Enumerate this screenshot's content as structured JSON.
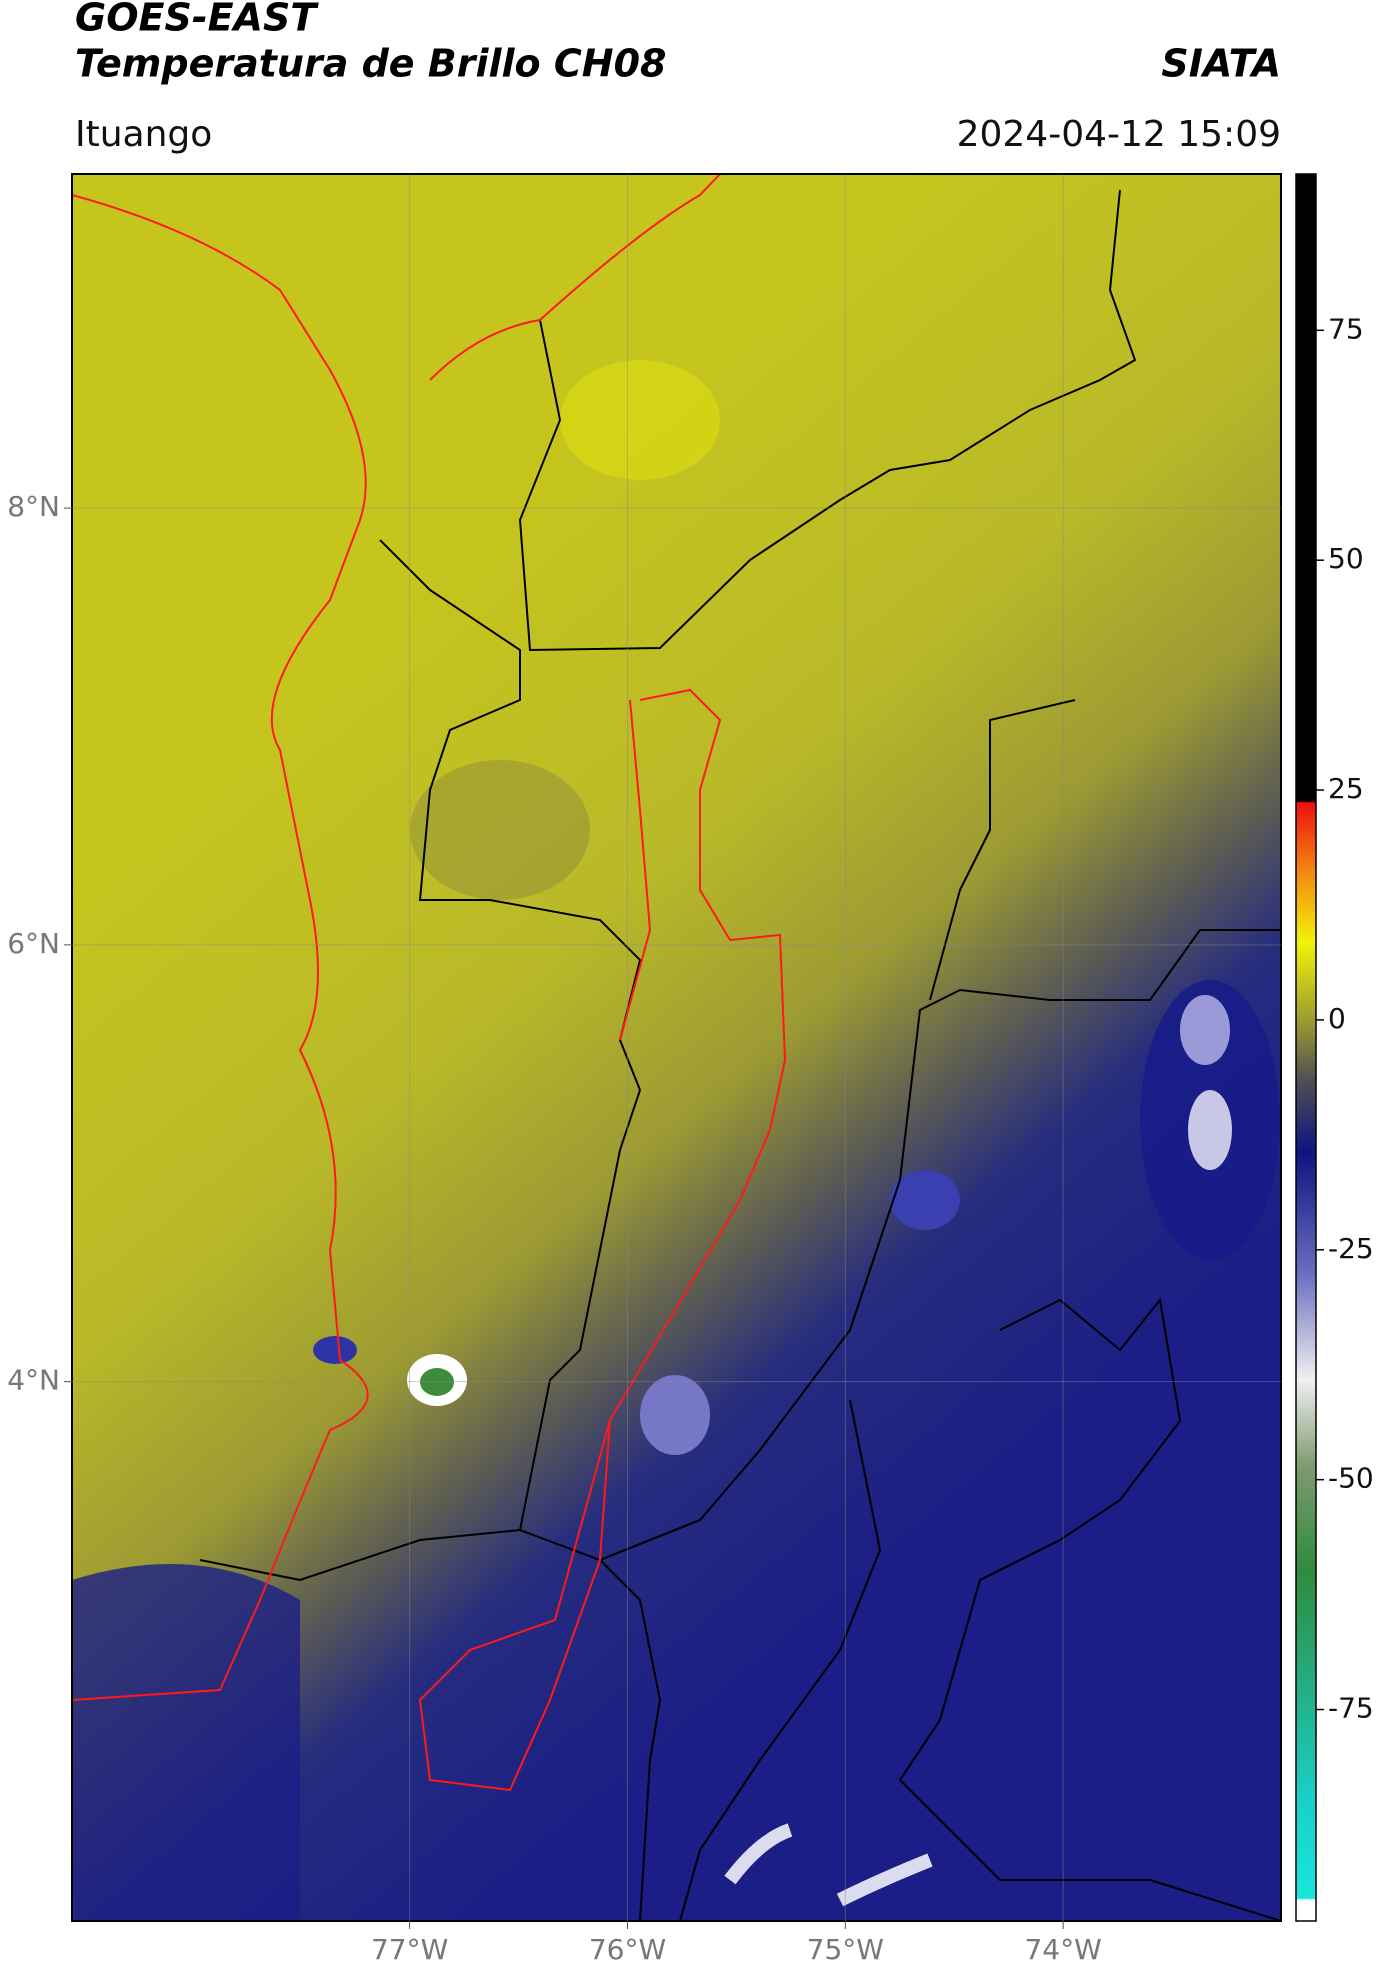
{
  "header": {
    "title": "GOES-EAST",
    "subtitle": "Temperatura de Brillo CH08",
    "source": "SIATA",
    "region": "Ituango",
    "datetime": "2024-04-12 15:09"
  },
  "map": {
    "lonlim": [
      -78.55,
      -73.0
    ],
    "latlim": [
      1.53,
      9.53
    ],
    "lonticks": [
      {
        "value": -77,
        "label": "77°W"
      },
      {
        "value": -76,
        "label": "76°W"
      },
      {
        "value": -75,
        "label": "75°W"
      },
      {
        "value": -74,
        "label": "74°W"
      }
    ],
    "latticks": [
      {
        "value": 4,
        "label": "4°N"
      },
      {
        "value": 6,
        "label": "6°N"
      },
      {
        "value": 8,
        "label": "8°N"
      }
    ],
    "grid": true
  },
  "colorbar": {
    "lim": [
      -98,
      92
    ],
    "ticks": [
      -75,
      -50,
      -25,
      0,
      25,
      50,
      75
    ]
  }
}
